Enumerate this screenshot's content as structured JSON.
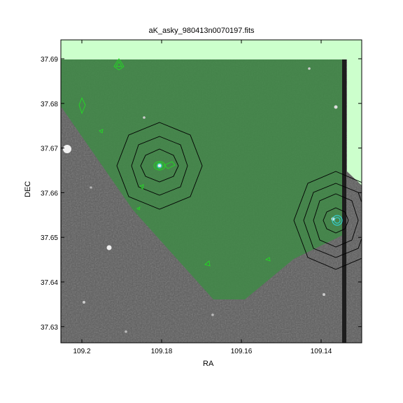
{
  "title": "aK_asky_980413n0070197.fits",
  "xlabel": "RA",
  "ylabel": "DEC",
  "x_ticks": [
    {
      "value": 109.2,
      "label": "109.2"
    },
    {
      "value": 109.18,
      "label": "109.18"
    },
    {
      "value": 109.16,
      "label": "109.16"
    },
    {
      "value": 109.14,
      "label": "109.14"
    }
  ],
  "y_ticks": [
    {
      "value": 37.69,
      "label": "37.69"
    },
    {
      "value": 37.68,
      "label": "37.68"
    },
    {
      "value": 37.67,
      "label": "37.67"
    },
    {
      "value": 37.66,
      "label": "37.66"
    },
    {
      "value": 37.65,
      "label": "37.65"
    },
    {
      "value": 37.64,
      "label": "37.64"
    },
    {
      "value": 37.63,
      "label": "37.63"
    }
  ],
  "colors": {
    "background": "#5c5c5c",
    "coverage": "#3f8a47",
    "outside": "#ccffcc",
    "contour_radio": "#000000",
    "contour_ir": "#22cc22",
    "contour_point": "#33bbbb"
  }
}
